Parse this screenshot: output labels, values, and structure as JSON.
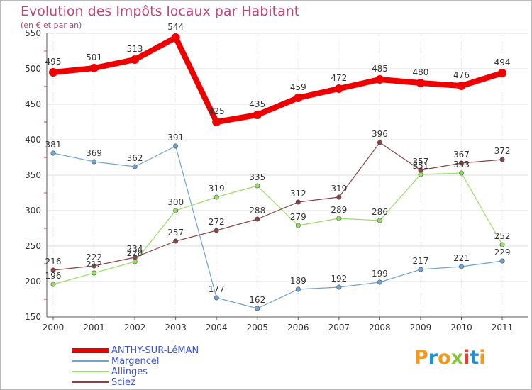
{
  "title": "Evolution des Impôts locaux par Habitant",
  "subtitle": "(en € et par an)",
  "logo": {
    "text": "Proxiti",
    "letter_colors": [
      "#f39a1c",
      "#1f8fd8",
      "#f39a1c",
      "#88c43c",
      "#e8412c",
      "#1f8fd8",
      "#f39a1c"
    ]
  },
  "chart_data": {
    "type": "line",
    "x": [
      "2000",
      "2001",
      "2002",
      "2003",
      "2004",
      "2005",
      "2006",
      "2007",
      "2008",
      "2009",
      "2010",
      "2011"
    ],
    "ylim": [
      150,
      550
    ],
    "yticks": [
      150,
      200,
      250,
      300,
      350,
      400,
      450,
      500,
      550
    ],
    "grid": true,
    "legend_position": "bottom-left",
    "series": [
      {
        "name": "ANTHY-SUR-LéMAN",
        "color": "#ee0000",
        "values": [
          495,
          501,
          513,
          544,
          425,
          435,
          459,
          472,
          485,
          480,
          476,
          494
        ],
        "labels": [
          "495",
          "501",
          "513",
          "544",
          "425",
          "435",
          "459",
          "472",
          "485",
          "480",
          "476",
          "494"
        ]
      },
      {
        "name": "Margencel",
        "color": "#6fa3d0",
        "values": [
          381,
          369,
          362,
          391,
          177,
          162,
          189,
          192,
          199,
          217,
          221,
          229
        ],
        "labels": [
          "381",
          "369",
          "362",
          "391",
          "177",
          "162",
          "189",
          "192",
          "199",
          "217",
          "221",
          "229"
        ]
      },
      {
        "name": "Allinges",
        "color": "#99dd66",
        "values": [
          196,
          212,
          228,
          300,
          319,
          335,
          279,
          289,
          286,
          351,
          353,
          252
        ],
        "labels": [
          "196",
          "212",
          "228",
          "300",
          "319",
          "335",
          "279",
          "289",
          "286",
          "351",
          "353",
          "252"
        ]
      },
      {
        "name": "Sciez",
        "color": "#884444",
        "values": [
          216,
          222,
          234,
          257,
          272,
          288,
          312,
          319,
          396,
          357,
          367,
          372
        ],
        "labels": [
          "216",
          "222",
          "234",
          "257",
          "272",
          "288",
          "312",
          "319",
          "396",
          "357",
          "367",
          "372"
        ]
      }
    ]
  }
}
